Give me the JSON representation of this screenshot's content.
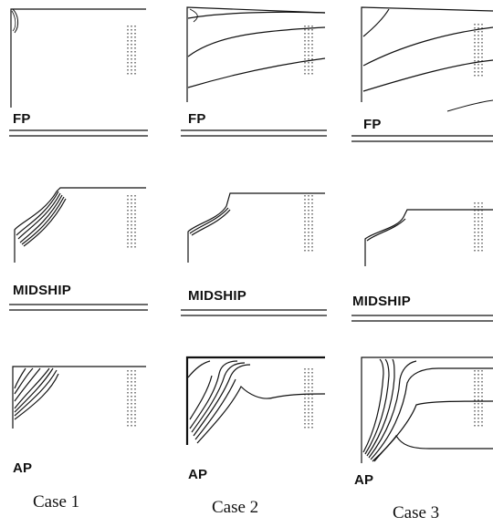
{
  "columns": [
    {
      "id": "case1",
      "label": "Case 1"
    },
    {
      "id": "case2",
      "label": "Case 2"
    },
    {
      "id": "case3",
      "label": "Case 3"
    }
  ],
  "rows": [
    {
      "id": "fp",
      "label": "FP"
    },
    {
      "id": "midship",
      "label": "MIDSHIP"
    },
    {
      "id": "ap",
      "label": "AP"
    }
  ],
  "colors": {
    "ink": "#111111",
    "background": "#ffffff"
  }
}
